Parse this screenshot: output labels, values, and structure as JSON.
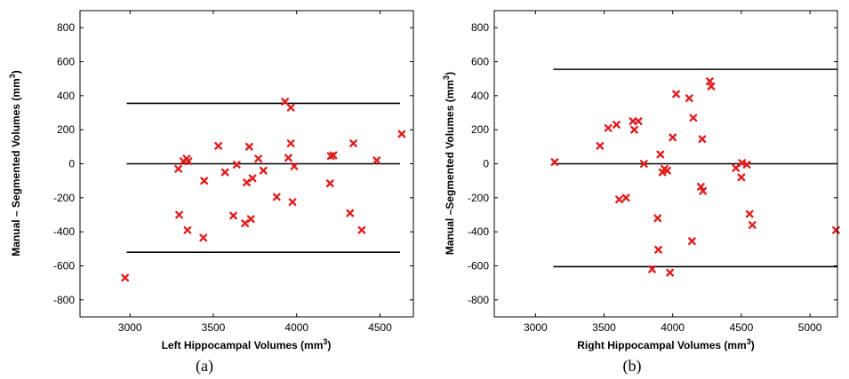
{
  "chart_data": [
    {
      "type": "scatter",
      "xlabel": "Left Hippocampal Volumes (mm",
      "xlabel_sup": "3",
      "xlabel_end": ")",
      "ylabel": "Manual – Segmented Volumes (mm",
      "ylabel_sup": "3",
      "ylabel_end": ")",
      "caption": "(a)",
      "xlim": [
        2700,
        4700
      ],
      "ylim": [
        -900,
        900
      ],
      "xticks": [
        3000,
        3500,
        4000,
        4500
      ],
      "yticks": [
        -800,
        -600,
        -400,
        -200,
        0,
        200,
        400,
        600,
        800
      ],
      "grid": false,
      "marker_color": "#e02020",
      "reference_lines": [
        {
          "y": 355,
          "x": [
            2980,
            4620
          ]
        },
        {
          "y": 0,
          "x": [
            2980,
            4620
          ]
        },
        {
          "y": -520,
          "x": [
            2980,
            4620
          ]
        }
      ],
      "points": [
        {
          "x": 2970,
          "y": -670
        },
        {
          "x": 3290,
          "y": -30
        },
        {
          "x": 3295,
          "y": -300
        },
        {
          "x": 3320,
          "y": 15
        },
        {
          "x": 3340,
          "y": 30
        },
        {
          "x": 3345,
          "y": -390
        },
        {
          "x": 3350,
          "y": 15
        },
        {
          "x": 3440,
          "y": -435
        },
        {
          "x": 3445,
          "y": -100
        },
        {
          "x": 3530,
          "y": 105
        },
        {
          "x": 3570,
          "y": -50
        },
        {
          "x": 3620,
          "y": -305
        },
        {
          "x": 3640,
          "y": -5
        },
        {
          "x": 3690,
          "y": -350
        },
        {
          "x": 3700,
          "y": -110
        },
        {
          "x": 3715,
          "y": 100
        },
        {
          "x": 3725,
          "y": -325
        },
        {
          "x": 3735,
          "y": -85
        },
        {
          "x": 3770,
          "y": 30
        },
        {
          "x": 3800,
          "y": -40
        },
        {
          "x": 3880,
          "y": -195
        },
        {
          "x": 3930,
          "y": 365
        },
        {
          "x": 3950,
          "y": 35
        },
        {
          "x": 3965,
          "y": 330
        },
        {
          "x": 3965,
          "y": 120
        },
        {
          "x": 3975,
          "y": -225
        },
        {
          "x": 3985,
          "y": -15
        },
        {
          "x": 4200,
          "y": -115
        },
        {
          "x": 4205,
          "y": 45
        },
        {
          "x": 4220,
          "y": 50
        },
        {
          "x": 4320,
          "y": -290
        },
        {
          "x": 4340,
          "y": 120
        },
        {
          "x": 4390,
          "y": -390
        },
        {
          "x": 4480,
          "y": 20
        },
        {
          "x": 4630,
          "y": 175
        }
      ]
    },
    {
      "type": "scatter",
      "xlabel": "Right Hippocampal Volumes (mm",
      "xlabel_sup": "3",
      "xlabel_end": ")",
      "ylabel": "Manual –Segmented Volumes (mm",
      "ylabel_sup": "3",
      "ylabel_end": ")",
      "caption": "(b)",
      "xlim": [
        2700,
        5200
      ],
      "ylim": [
        -900,
        900
      ],
      "xticks": [
        3000,
        3500,
        4000,
        4500,
        5000
      ],
      "yticks": [
        -800,
        -600,
        -400,
        -200,
        0,
        200,
        400,
        600,
        800
      ],
      "grid": false,
      "marker_color": "#e02020",
      "reference_lines": [
        {
          "y": 555,
          "x": [
            3130,
            5200
          ]
        },
        {
          "y": 0,
          "x": [
            3130,
            5200
          ]
        },
        {
          "y": -605,
          "x": [
            3130,
            5200
          ]
        }
      ],
      "points": [
        {
          "x": 3140,
          "y": 10
        },
        {
          "x": 3470,
          "y": 105
        },
        {
          "x": 3530,
          "y": 210
        },
        {
          "x": 3590,
          "y": 230
        },
        {
          "x": 3610,
          "y": -210
        },
        {
          "x": 3660,
          "y": -200
        },
        {
          "x": 3710,
          "y": 250
        },
        {
          "x": 3720,
          "y": 200
        },
        {
          "x": 3750,
          "y": 250
        },
        {
          "x": 3790,
          "y": 0
        },
        {
          "x": 3850,
          "y": -620
        },
        {
          "x": 3890,
          "y": -320
        },
        {
          "x": 3895,
          "y": -505
        },
        {
          "x": 3910,
          "y": 55
        },
        {
          "x": 3925,
          "y": -50
        },
        {
          "x": 3940,
          "y": -30
        },
        {
          "x": 3960,
          "y": -40
        },
        {
          "x": 3980,
          "y": -640
        },
        {
          "x": 4000,
          "y": 155
        },
        {
          "x": 4025,
          "y": 410
        },
        {
          "x": 4120,
          "y": 385
        },
        {
          "x": 4140,
          "y": -455
        },
        {
          "x": 4150,
          "y": 270
        },
        {
          "x": 4205,
          "y": -135
        },
        {
          "x": 4215,
          "y": 145
        },
        {
          "x": 4220,
          "y": -160
        },
        {
          "x": 4270,
          "y": 485
        },
        {
          "x": 4280,
          "y": 455
        },
        {
          "x": 4460,
          "y": -25
        },
        {
          "x": 4500,
          "y": -80
        },
        {
          "x": 4505,
          "y": 5
        },
        {
          "x": 4540,
          "y": -5
        },
        {
          "x": 4560,
          "y": -295
        },
        {
          "x": 4580,
          "y": -360
        },
        {
          "x": 5190,
          "y": -390
        }
      ]
    }
  ]
}
